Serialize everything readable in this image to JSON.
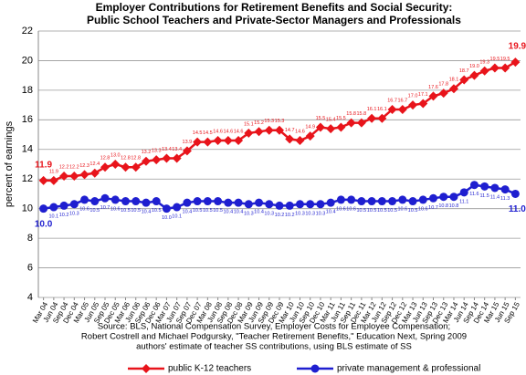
{
  "chart_data": {
    "type": "line",
    "title": [
      "Employer Contributions for Retirement Benefits and Social Security:",
      "Public School Teachers and Private-Sector Managers and Professionals"
    ],
    "y_label": "percent of earnings",
    "source": [
      "Source:  BLS, National Compensation Survey,  Employer Costs for Employee Compensation;",
      "Robert Costrell and Michael Podgursky, \"Teacher Retirement Benefits,\" Education Next, Spring 2009",
      "authors' estimate of teacher SS contributions, using BLS estimate of SS"
    ],
    "categories": [
      "Mar 04",
      "Jun 04",
      "Sep 04",
      "Dec 04",
      "Mar 05",
      "Jun 05",
      "Sep 05",
      "Dec 05",
      "Mar 06",
      "Jun 06",
      "Sep 06",
      "Dec 06",
      "Mar 07",
      "Jun 07",
      "Sep 07",
      "Dec 07",
      "Mar 08",
      "Jun 08",
      "Sep 08",
      "Dec 08",
      "Mar 09",
      "Jun 09",
      "Sep 09",
      "Dec 09",
      "Mar 10",
      "Jun 10",
      "Sep 10",
      "Dec 10",
      "Mar 11",
      "Jun 11",
      "Sep 11",
      "Dec 11",
      "Mar 12",
      "Jun 12",
      "Sep 12",
      "Dec 12",
      "Mar 13",
      "Jun 13",
      "Sep 13",
      "Dec 13",
      "Mar 14",
      "Jun 14",
      "Sep 14",
      "Dec 14",
      "Mar 15",
      "Jun 15",
      "Sep 15"
    ],
    "ylim": [
      4,
      22
    ],
    "yticks": [
      4,
      6,
      8,
      10,
      12,
      14,
      16,
      18,
      20,
      22
    ],
    "grid": true,
    "series": [
      {
        "name": "public K-12 teachers",
        "color": "#e8141b",
        "marker": "diamond",
        "values": [
          11.9,
          11.9,
          12.2,
          12.2,
          12.3,
          12.4,
          12.8,
          13.0,
          12.8,
          12.8,
          13.2,
          13.3,
          13.4,
          13.4,
          13.9,
          14.5,
          14.5,
          14.6,
          14.6,
          14.6,
          15.1,
          15.2,
          15.3,
          15.3,
          14.7,
          14.6,
          14.9,
          15.5,
          15.4,
          15.5,
          15.8,
          15.8,
          16.1,
          16.1,
          16.7,
          16.7,
          17.0,
          17.1,
          17.6,
          17.8,
          18.1,
          18.7,
          19.0,
          19.3,
          19.5,
          19.5,
          19.9
        ],
        "value_labels": [
          "11.9",
          "11.9",
          "12.2",
          "12.2",
          "12.3",
          "12.4",
          "12.8",
          "13.0",
          "12.8",
          "12.8",
          "13.2",
          "13.3",
          "13.4",
          "13.4",
          "13.9",
          "14.5",
          "14.5",
          "14.6",
          "14.6",
          "14.6",
          "15.1",
          "15.2",
          "15.3",
          "15.3",
          "14.7",
          "14.6",
          "14.9",
          "15.5",
          "15.4",
          "15.5",
          "15.8",
          "15.8",
          "16.1",
          "16.1",
          "16.7",
          "16.7",
          "17.0",
          "17.1",
          "17.6",
          "17.8",
          "18.1",
          "18.7",
          "19.0",
          "19.3",
          "19.5",
          "19.5",
          "19.9"
        ]
      },
      {
        "name": "private management & professional",
        "color": "#1f1fd0",
        "marker": "circle",
        "values": [
          10.0,
          10.1,
          10.2,
          10.3,
          10.6,
          10.5,
          10.7,
          10.6,
          10.5,
          10.5,
          10.4,
          10.5,
          10.0,
          10.1,
          10.4,
          10.5,
          10.5,
          10.5,
          10.4,
          10.4,
          10.3,
          10.4,
          10.3,
          10.2,
          10.2,
          10.3,
          10.3,
          10.3,
          10.4,
          10.6,
          10.6,
          10.5,
          10.5,
          10.5,
          10.5,
          10.6,
          10.5,
          10.6,
          10.7,
          10.8,
          10.8,
          11.1,
          11.6,
          11.5,
          11.4,
          11.3,
          11.0
        ],
        "value_labels": [
          "10.0",
          "10.1",
          "10.2",
          "10.3",
          "10.6",
          "10.5",
          "10.7",
          "10.6",
          "10.5",
          "10.5",
          "10.4",
          "10.5",
          "10.0",
          "10.1",
          "10.4",
          "10.5",
          "10.5",
          "10.5",
          "10.4",
          "10.4",
          "10.3",
          "10.4",
          "10.3",
          "10.2",
          "10.2",
          "10.3",
          "10.3",
          "10.3",
          "10.4",
          "10.6",
          "10.6",
          "10.5",
          "10.5",
          "10.5",
          "10.5",
          "10.6",
          "10.5",
          "10.6",
          "10.7",
          "10.8",
          "10.8",
          "11.1",
          "11.6",
          "11.5",
          "11.4",
          "11.3",
          "11.0"
        ]
      }
    ]
  }
}
